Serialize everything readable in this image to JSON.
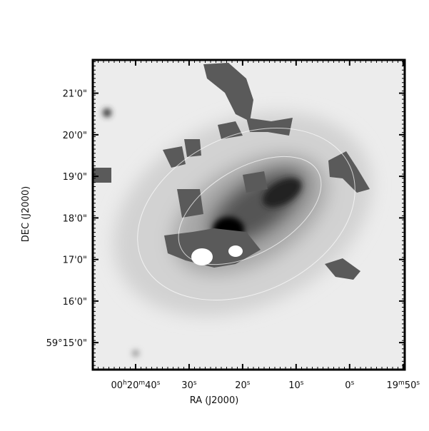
{
  "chart_data": {
    "type": "image",
    "xlabel": "RA (J2000)",
    "ylabel": "DEC (J2000)",
    "xlim": [
      48,
      -10.3
    ],
    "ylim": [
      14.35,
      21.8
    ],
    "xticks": [
      {
        "value": 40,
        "label": "00h20m40s"
      },
      {
        "value": 30,
        "label": "30s"
      },
      {
        "value": 20,
        "label": "20s"
      },
      {
        "value": 10,
        "label": "10s"
      },
      {
        "value": 0,
        "label": "0s"
      },
      {
        "value": -10,
        "label": "19m50s"
      }
    ],
    "yticks": [
      {
        "value": 21,
        "label": "21'0\""
      },
      {
        "value": 20,
        "label": "20'0\""
      },
      {
        "value": 19,
        "label": "19'0\""
      },
      {
        "value": 18,
        "label": "18'0\""
      },
      {
        "value": 17,
        "label": "17'0\""
      },
      {
        "value": 16,
        "label": "16'0\""
      },
      {
        "value": 15,
        "label": "59°15'0\""
      }
    ]
  }
}
